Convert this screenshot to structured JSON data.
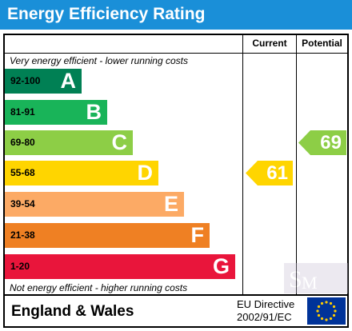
{
  "title": "Energy Efficiency Rating",
  "columns": {
    "current": "Current",
    "potential": "Potential"
  },
  "captions": {
    "top": "Very energy efficient - lower running costs",
    "bottom": "Not energy efficient - higher running costs"
  },
  "bands": [
    {
      "range": "92-100",
      "letter": "A",
      "color": "#008054",
      "text_color": "#000000"
    },
    {
      "range": "81-91",
      "letter": "B",
      "color": "#19b459",
      "text_color": "#000000"
    },
    {
      "range": "69-80",
      "letter": "C",
      "color": "#8dce46",
      "text_color": "#000000"
    },
    {
      "range": "55-68",
      "letter": "D",
      "color": "#ffd500",
      "text_color": "#000000"
    },
    {
      "range": "39-54",
      "letter": "E",
      "color": "#fcaa65",
      "text_color": "#000000"
    },
    {
      "range": "21-38",
      "letter": "F",
      "color": "#ef8023",
      "text_color": "#000000"
    },
    {
      "range": "1-20",
      "letter": "G",
      "color": "#e9153b",
      "text_color": "#000000"
    }
  ],
  "current": {
    "value": "61",
    "band": "D",
    "color": "#ffd500"
  },
  "potential": {
    "value": "69",
    "band": "C",
    "color": "#8dce46"
  },
  "footer": {
    "region": "England & Wales",
    "directive_line1": "EU Directive",
    "directive_line2": "2002/91/EC"
  },
  "colors": {
    "title_bar": "#1a8fd8",
    "eu_flag": "#003399",
    "eu_stars": "#ffcc00"
  },
  "watermark_text": "Spencer Michael"
}
